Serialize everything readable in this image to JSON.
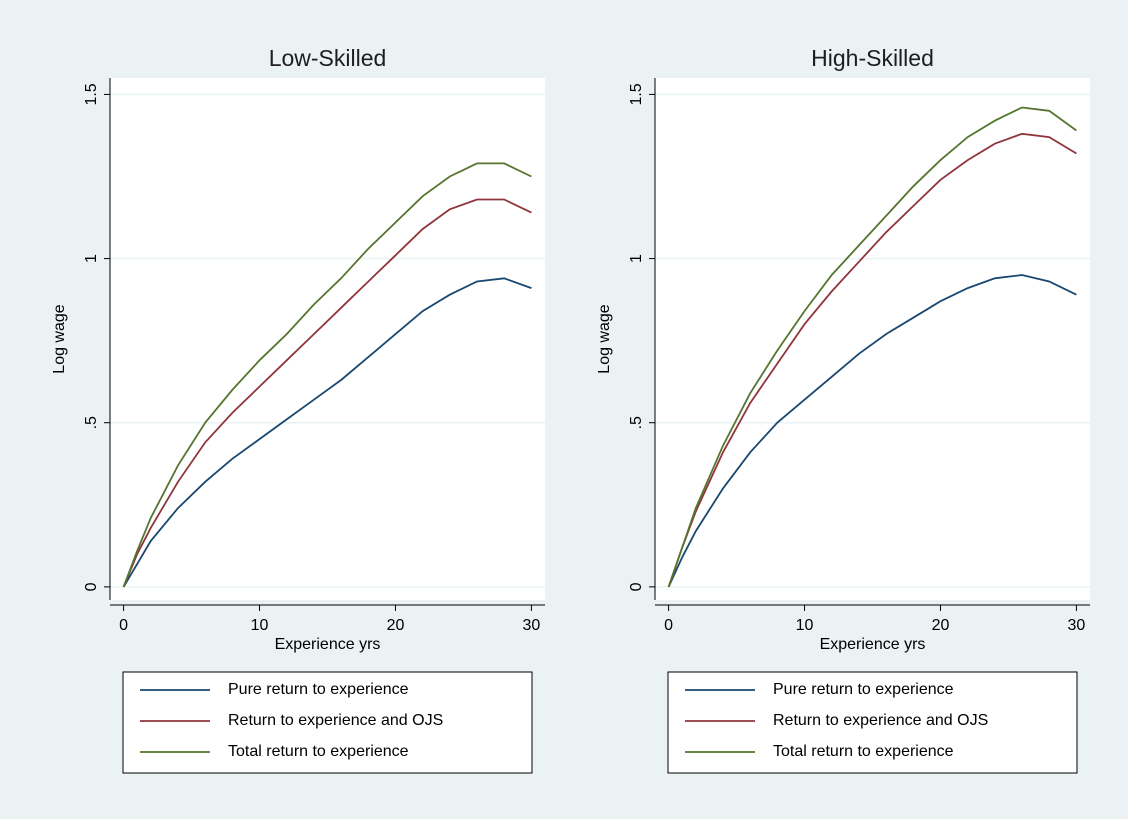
{
  "chart_data": [
    {
      "type": "line",
      "title": "Low-Skilled",
      "x_label": "Experience yrs",
      "y_label": "Log wage",
      "x": [
        0,
        1,
        2,
        4,
        6,
        8,
        10,
        12,
        14,
        16,
        18,
        20,
        22,
        24,
        26,
        28,
        30
      ],
      "series": [
        {
          "name": "Pure return to experience",
          "color": "#1a476f",
          "values": [
            0,
            0.07,
            0.14,
            0.24,
            0.32,
            0.39,
            0.45,
            0.51,
            0.57,
            0.63,
            0.7,
            0.77,
            0.84,
            0.89,
            0.93,
            0.94,
            0.91
          ]
        },
        {
          "name": "Return to experience and OJS",
          "color": "#90353b",
          "values": [
            0,
            0.1,
            0.18,
            0.32,
            0.44,
            0.53,
            0.61,
            0.69,
            0.77,
            0.85,
            0.93,
            1.01,
            1.09,
            1.15,
            1.18,
            1.18,
            1.14
          ]
        },
        {
          "name": "Total return to experience",
          "color": "#55752f",
          "values": [
            0,
            0.11,
            0.21,
            0.37,
            0.5,
            0.6,
            0.69,
            0.77,
            0.86,
            0.94,
            1.03,
            1.11,
            1.19,
            1.25,
            1.29,
            1.29,
            1.25
          ]
        }
      ],
      "xlim": [
        -1,
        31
      ],
      "xticks": [
        0,
        10,
        20,
        30
      ],
      "ylim": [
        -0.04,
        1.55
      ],
      "yticks": [
        0,
        {
          "value": 0.5,
          "label": ".5"
        },
        1,
        1.5
      ],
      "grid": true,
      "legend": "bottom"
    },
    {
      "type": "line",
      "title": "High-Skilled",
      "x_label": "Experience yrs",
      "y_label": "Log wage",
      "x": [
        0,
        1,
        2,
        4,
        6,
        8,
        10,
        12,
        14,
        16,
        18,
        20,
        22,
        24,
        26,
        28,
        30
      ],
      "series": [
        {
          "name": "Pure return to experience",
          "color": "#1a476f",
          "values": [
            0,
            0.09,
            0.17,
            0.3,
            0.41,
            0.5,
            0.57,
            0.64,
            0.71,
            0.77,
            0.82,
            0.87,
            0.91,
            0.94,
            0.95,
            0.93,
            0.89
          ]
        },
        {
          "name": "Return to experience and OJS",
          "color": "#90353b",
          "values": [
            0,
            0.12,
            0.23,
            0.41,
            0.56,
            0.68,
            0.8,
            0.9,
            0.99,
            1.08,
            1.16,
            1.24,
            1.3,
            1.35,
            1.38,
            1.37,
            1.32
          ]
        },
        {
          "name": "Total return to experience",
          "color": "#55752f",
          "values": [
            0,
            0.12,
            0.24,
            0.43,
            0.59,
            0.72,
            0.84,
            0.95,
            1.04,
            1.13,
            1.22,
            1.3,
            1.37,
            1.42,
            1.46,
            1.45,
            1.39
          ]
        }
      ],
      "xlim": [
        -1,
        31
      ],
      "xticks": [
        0,
        10,
        20,
        30
      ],
      "ylim": [
        -0.04,
        1.55
      ],
      "yticks": [
        0,
        {
          "value": 0.5,
          "label": ".5"
        },
        1,
        1.5
      ],
      "grid": true,
      "legend": "bottom"
    }
  ]
}
